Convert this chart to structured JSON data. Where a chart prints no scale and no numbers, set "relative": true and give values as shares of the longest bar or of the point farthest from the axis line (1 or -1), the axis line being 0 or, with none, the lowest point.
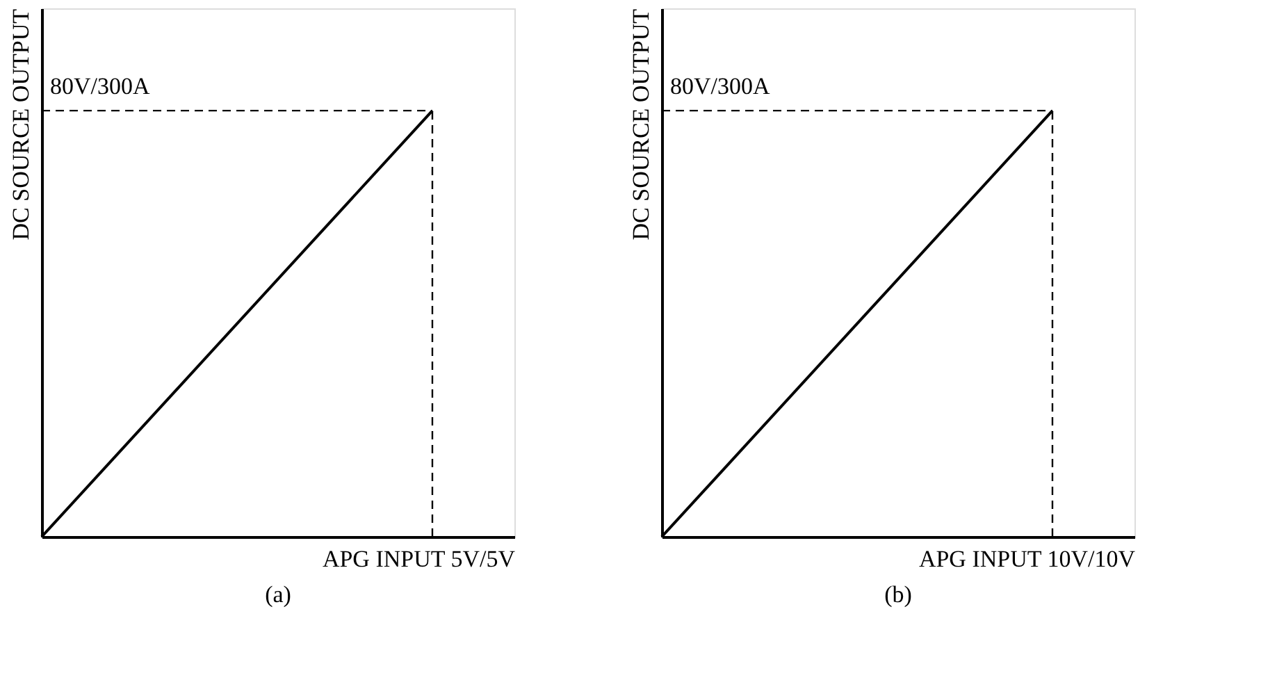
{
  "chart_data": [
    {
      "type": "line",
      "title": "(a)",
      "xlabel": "APG INPUT 5V/5V",
      "ylabel": "DC SOURCE OUTPUT",
      "relative": true,
      "categories": [
        null,
        null
      ],
      "tick_labels": false,
      "grid": false,
      "line_style": "solid",
      "series": [
        {
          "color": "#000000",
          "values": [
            0,
            1
          ]
        }
      ],
      "annotations": [
        "80V/300A"
      ]
    },
    {
      "type": "line",
      "title": "(b)",
      "xlabel": "APG INPUT 10V/10V",
      "ylabel": "DC SOURCE OUTPUT",
      "relative": true,
      "categories": [
        null,
        null
      ],
      "tick_labels": false,
      "grid": false,
      "line_style": "solid",
      "series": [
        {
          "color": "#000000",
          "values": [
            0,
            1
          ]
        }
      ],
      "annotations": [
        "80V/300A"
      ]
    }
  ]
}
